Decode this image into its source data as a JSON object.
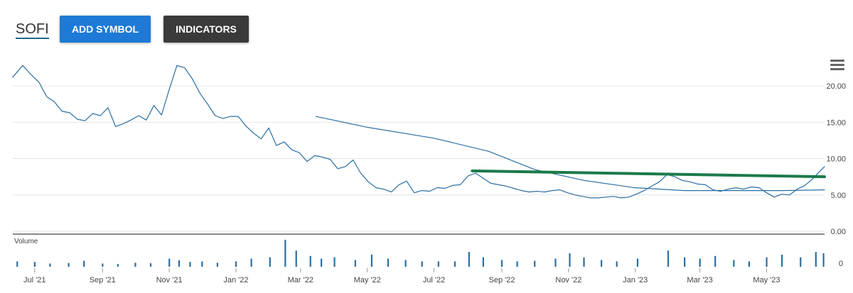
{
  "toolbar": {
    "symbol": "SOFI",
    "add_symbol_label": "ADD SYMBOL",
    "indicators_label": "INDICATORS"
  },
  "icons": {
    "menu": "hamburger-menu-icon"
  },
  "colors": {
    "price_line": "#2b6fa3",
    "moving_average": "#2b6fa3",
    "trendline": "#1b7a4a",
    "volume_bar": "#2b6fa3",
    "button_primary": "#1e7ad6",
    "button_dark": "#3a3a3a"
  },
  "chart_data": {
    "type": "line",
    "y_axis_ticks": [
      "20.00",
      "15.00",
      "10.00",
      "5.00",
      "0.00"
    ],
    "y_axis_values": [
      20,
      15,
      10,
      5,
      0
    ],
    "ylim": [
      0,
      24
    ],
    "volume_label": "Volume",
    "volume_tick": "0",
    "x_tick_labels": [
      "Jul '21",
      "Sep '21",
      "Nov '21",
      "Jan '22",
      "Mar '22",
      "May '22",
      "Jul '22",
      "Sep '22",
      "Nov '22",
      "Jan '23",
      "Mar '23",
      "May '23"
    ],
    "x_tick_dates": [
      "2021-07-01",
      "2021-09-01",
      "2021-11-01",
      "2022-01-01",
      "2022-03-01",
      "2022-05-01",
      "2022-07-01",
      "2022-09-01",
      "2022-11-01",
      "2023-01-01",
      "2023-03-01",
      "2023-05-01"
    ],
    "xlim": [
      "2021-06-11",
      "2023-06-23"
    ],
    "grid": true,
    "series": [
      {
        "kind": "price",
        "points": [
          [
            "2021-06-11",
            21.2
          ],
          [
            "2021-06-20",
            22.8
          ],
          [
            "2021-06-28",
            21.5
          ],
          [
            "2021-07-05",
            20.5
          ],
          [
            "2021-07-12",
            18.5
          ],
          [
            "2021-07-19",
            17.8
          ],
          [
            "2021-07-26",
            16.5
          ],
          [
            "2021-08-02",
            16.3
          ],
          [
            "2021-08-09",
            15.4
          ],
          [
            "2021-08-16",
            15.2
          ],
          [
            "2021-08-23",
            16.2
          ],
          [
            "2021-08-30",
            15.9
          ],
          [
            "2021-09-06",
            17.0
          ],
          [
            "2021-09-13",
            14.4
          ],
          [
            "2021-09-20",
            14.8
          ],
          [
            "2021-09-27",
            15.3
          ],
          [
            "2021-10-04",
            15.9
          ],
          [
            "2021-10-11",
            15.3
          ],
          [
            "2021-10-18",
            17.3
          ],
          [
            "2021-10-25",
            16.0
          ],
          [
            "2021-11-01",
            19.5
          ],
          [
            "2021-11-08",
            22.8
          ],
          [
            "2021-11-15",
            22.5
          ],
          [
            "2021-11-22",
            21.0
          ],
          [
            "2021-11-29",
            19.0
          ],
          [
            "2021-12-06",
            17.5
          ],
          [
            "2021-12-13",
            15.9
          ],
          [
            "2021-12-20",
            15.5
          ],
          [
            "2021-12-27",
            15.8
          ],
          [
            "2022-01-03",
            15.8
          ],
          [
            "2022-01-10",
            14.5
          ],
          [
            "2022-01-17",
            13.5
          ],
          [
            "2022-01-24",
            12.7
          ],
          [
            "2022-01-31",
            14.2
          ],
          [
            "2022-02-07",
            11.8
          ],
          [
            "2022-02-14",
            12.3
          ],
          [
            "2022-02-21",
            11.2
          ],
          [
            "2022-02-28",
            10.8
          ],
          [
            "2022-03-07",
            9.6
          ],
          [
            "2022-03-14",
            10.4
          ],
          [
            "2022-03-21",
            10.2
          ],
          [
            "2022-03-28",
            9.9
          ],
          [
            "2022-04-04",
            8.6
          ],
          [
            "2022-04-11",
            8.9
          ],
          [
            "2022-04-18",
            9.8
          ],
          [
            "2022-04-25",
            8.0
          ],
          [
            "2022-05-02",
            6.8
          ],
          [
            "2022-05-09",
            6.0
          ],
          [
            "2022-05-16",
            5.8
          ],
          [
            "2022-05-23",
            5.4
          ],
          [
            "2022-05-30",
            6.4
          ],
          [
            "2022-06-06",
            6.9
          ],
          [
            "2022-06-13",
            5.3
          ],
          [
            "2022-06-20",
            5.6
          ],
          [
            "2022-06-27",
            5.5
          ],
          [
            "2022-07-04",
            6.0
          ],
          [
            "2022-07-11",
            5.9
          ],
          [
            "2022-07-18",
            6.3
          ],
          [
            "2022-07-25",
            6.4
          ],
          [
            "2022-08-01",
            7.6
          ],
          [
            "2022-08-08",
            8.0
          ],
          [
            "2022-08-15",
            7.3
          ],
          [
            "2022-08-22",
            6.6
          ],
          [
            "2022-08-29",
            6.4
          ],
          [
            "2022-09-05",
            6.2
          ],
          [
            "2022-09-12",
            5.9
          ],
          [
            "2022-09-19",
            5.6
          ],
          [
            "2022-09-26",
            5.4
          ],
          [
            "2022-10-03",
            5.5
          ],
          [
            "2022-10-10",
            5.4
          ],
          [
            "2022-10-17",
            5.6
          ],
          [
            "2022-10-24",
            5.7
          ],
          [
            "2022-10-31",
            5.3
          ],
          [
            "2022-11-07",
            5.0
          ],
          [
            "2022-11-14",
            4.8
          ],
          [
            "2022-11-21",
            4.6
          ],
          [
            "2022-11-28",
            4.6
          ],
          [
            "2022-12-05",
            4.7
          ],
          [
            "2022-12-12",
            4.8
          ],
          [
            "2022-12-19",
            4.6
          ],
          [
            "2022-12-26",
            4.7
          ],
          [
            "2023-01-02",
            5.1
          ],
          [
            "2023-01-09",
            5.6
          ],
          [
            "2023-01-16",
            6.2
          ],
          [
            "2023-01-23",
            6.8
          ],
          [
            "2023-01-30",
            7.8
          ],
          [
            "2023-02-06",
            7.5
          ],
          [
            "2023-02-13",
            7.0
          ],
          [
            "2023-02-20",
            6.8
          ],
          [
            "2023-02-27",
            6.5
          ],
          [
            "2023-03-06",
            6.4
          ],
          [
            "2023-03-13",
            5.7
          ],
          [
            "2023-03-20",
            5.5
          ],
          [
            "2023-03-27",
            5.8
          ],
          [
            "2023-04-03",
            6.0
          ],
          [
            "2023-04-10",
            5.8
          ],
          [
            "2023-04-17",
            6.1
          ],
          [
            "2023-04-24",
            6.0
          ],
          [
            "2023-05-01",
            5.3
          ],
          [
            "2023-05-08",
            4.7
          ],
          [
            "2023-05-15",
            5.1
          ],
          [
            "2023-05-22",
            5.0
          ],
          [
            "2023-05-29",
            5.8
          ],
          [
            "2023-06-05",
            6.3
          ],
          [
            "2023-06-12",
            7.2
          ],
          [
            "2023-06-19",
            8.3
          ],
          [
            "2023-06-23",
            8.9
          ]
        ]
      },
      {
        "kind": "moving_average",
        "points": [
          [
            "2022-03-15",
            15.8
          ],
          [
            "2022-05-01",
            14.3
          ],
          [
            "2022-07-01",
            12.8
          ],
          [
            "2022-08-20",
            11.0
          ],
          [
            "2022-10-01",
            8.5
          ],
          [
            "2022-11-15",
            7.0
          ],
          [
            "2022-12-31",
            6.0
          ],
          [
            "2023-02-15",
            5.6
          ],
          [
            "2023-04-01",
            5.6
          ],
          [
            "2023-05-15",
            5.6
          ],
          [
            "2023-06-23",
            5.7
          ]
        ]
      },
      {
        "kind": "trendline",
        "points": [
          [
            "2022-08-05",
            8.3
          ],
          [
            "2023-06-23",
            7.5
          ]
        ]
      }
    ],
    "volume": [
      [
        "2021-06-15",
        0.2
      ],
      [
        "2021-07-01",
        0.18
      ],
      [
        "2021-07-15",
        0.12
      ],
      [
        "2021-08-01",
        0.14
      ],
      [
        "2021-08-15",
        0.22
      ],
      [
        "2021-09-01",
        0.12
      ],
      [
        "2021-09-15",
        0.1
      ],
      [
        "2021-10-01",
        0.15
      ],
      [
        "2021-10-15",
        0.13
      ],
      [
        "2021-11-01",
        0.3
      ],
      [
        "2021-11-10",
        0.24
      ],
      [
        "2021-11-20",
        0.18
      ],
      [
        "2021-12-01",
        0.2
      ],
      [
        "2021-12-15",
        0.15
      ],
      [
        "2022-01-01",
        0.2
      ],
      [
        "2022-01-15",
        0.3
      ],
      [
        "2022-02-01",
        0.35
      ],
      [
        "2022-02-15",
        1.0
      ],
      [
        "2022-02-25",
        0.6
      ],
      [
        "2022-03-10",
        0.4
      ],
      [
        "2022-03-20",
        0.3
      ],
      [
        "2022-04-01",
        0.35
      ],
      [
        "2022-04-20",
        0.25
      ],
      [
        "2022-05-05",
        0.45
      ],
      [
        "2022-05-20",
        0.3
      ],
      [
        "2022-06-05",
        0.25
      ],
      [
        "2022-06-20",
        0.2
      ],
      [
        "2022-07-05",
        0.2
      ],
      [
        "2022-07-20",
        0.2
      ],
      [
        "2022-08-02",
        0.55
      ],
      [
        "2022-08-15",
        0.35
      ],
      [
        "2022-09-01",
        0.25
      ],
      [
        "2022-09-15",
        0.2
      ],
      [
        "2022-10-01",
        0.22
      ],
      [
        "2022-10-20",
        0.3
      ],
      [
        "2022-11-02",
        0.5
      ],
      [
        "2022-11-15",
        0.35
      ],
      [
        "2022-12-01",
        0.25
      ],
      [
        "2022-12-15",
        0.2
      ],
      [
        "2023-01-03",
        0.3
      ],
      [
        "2023-01-31",
        0.6
      ],
      [
        "2023-02-15",
        0.35
      ],
      [
        "2023-03-01",
        0.3
      ],
      [
        "2023-03-15",
        0.4
      ],
      [
        "2023-04-01",
        0.25
      ],
      [
        "2023-04-15",
        0.2
      ],
      [
        "2023-05-01",
        0.35
      ],
      [
        "2023-05-15",
        0.45
      ],
      [
        "2023-06-01",
        0.35
      ],
      [
        "2023-06-15",
        0.55
      ],
      [
        "2023-06-22",
        0.5
      ]
    ]
  }
}
